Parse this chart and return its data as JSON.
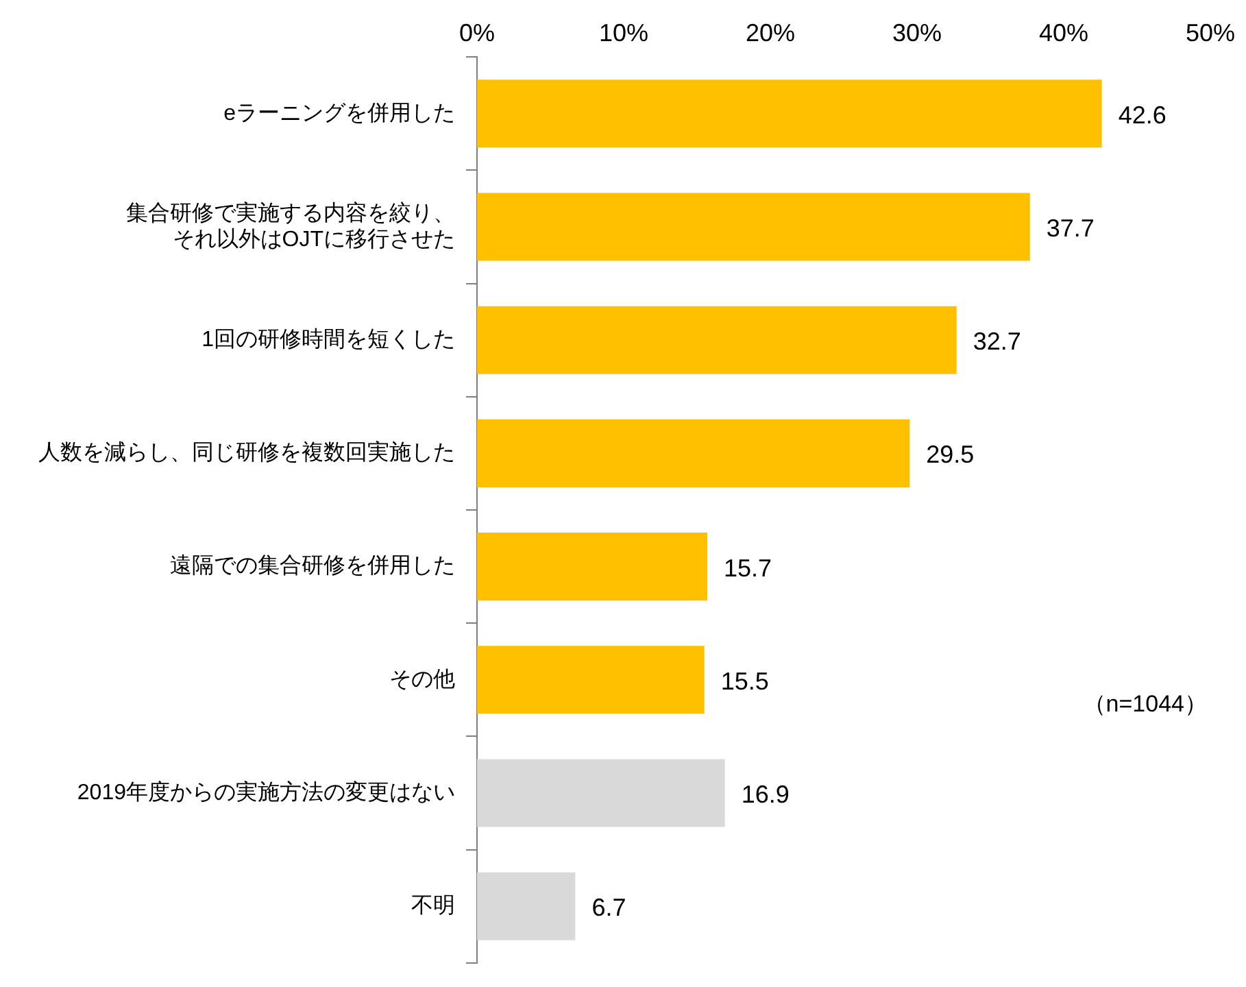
{
  "chart_data": {
    "type": "bar",
    "orientation": "horizontal",
    "categories": [
      "eラーニングを併用した",
      "集合研修で実施する内容を絞り、それ以外はOJTに移行させた",
      "1回の研修時間を短くした",
      "人数を減らし、同じ研修を複数回実施した",
      "遠隔での集合研修を併用した",
      "その他",
      "2019年度からの実施方法の変更はない",
      "不明"
    ],
    "values": [
      42.6,
      37.7,
      32.7,
      29.5,
      15.7,
      15.5,
      16.9,
      6.7
    ],
    "colors": [
      "#ffc000",
      "#ffc000",
      "#ffc000",
      "#ffc000",
      "#ffc000",
      "#ffc000",
      "#d9d9d9",
      "#d9d9d9"
    ],
    "xlim": [
      0,
      50
    ],
    "xticks": [
      {
        "value": 0,
        "label": "0%"
      },
      {
        "value": 10,
        "label": "10%"
      },
      {
        "value": 20,
        "label": "20%"
      },
      {
        "value": 30,
        "label": "30%"
      },
      {
        "value": 40,
        "label": "40%"
      },
      {
        "value": 50,
        "label": "50%"
      }
    ],
    "data_labels": true,
    "grid": false,
    "legend": false,
    "annotations": [
      "（n=1044）"
    ]
  }
}
